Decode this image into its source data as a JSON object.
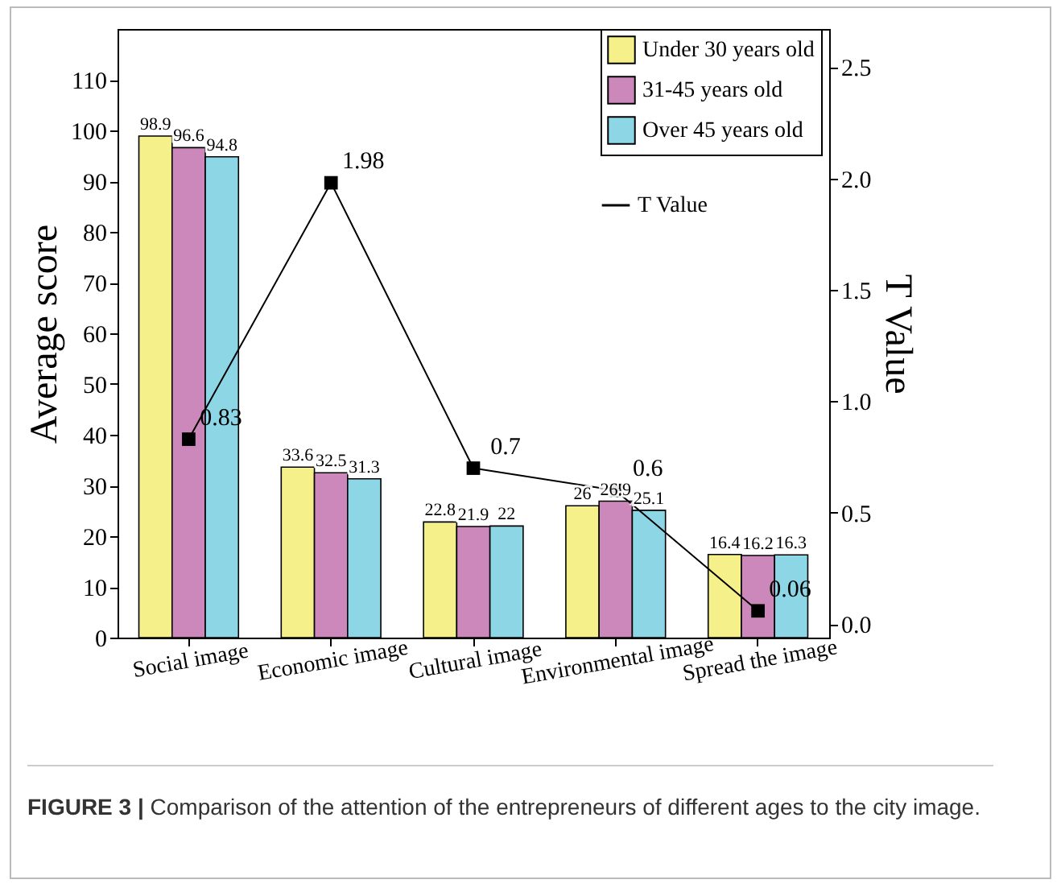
{
  "chart_data": {
    "type": "bar",
    "ylabel": "Average score",
    "y2label": "T Value",
    "categories": [
      "Social image",
      "Economic image",
      "Cultural image",
      "Environmental image",
      "Spread the image"
    ],
    "series": [
      {
        "name": "Under 30 years old",
        "color": "#f5f08a",
        "values": [
          98.9,
          33.6,
          22.8,
          26,
          16.4
        ]
      },
      {
        "name": "31-45 years old",
        "color": "#cc88bb",
        "values": [
          96.6,
          32.5,
          21.9,
          26.9,
          16.2
        ]
      },
      {
        "name": "Over 45 years old",
        "color": "#8dd6e6",
        "values": [
          94.8,
          31.3,
          22,
          25.1,
          16.3
        ]
      },
      {
        "name": "T Value",
        "type": "line",
        "axis": "y2",
        "color": "#000000",
        "marker": "square",
        "values": [
          0.83,
          1.98,
          0.7,
          0.6,
          0.06
        ]
      }
    ],
    "ylim": [
      0,
      120
    ],
    "yticks": [
      0,
      10,
      20,
      30,
      40,
      50,
      60,
      70,
      80,
      90,
      100,
      110
    ],
    "y2lim": [
      -0.06,
      2.67
    ],
    "y2ticks": [
      {
        "value": 0,
        "label": "0.0"
      },
      0.5,
      {
        "value": 1,
        "label": "1.0"
      },
      1.5,
      {
        "value": 2,
        "label": "2.0"
      },
      2.5
    ],
    "data_labels": true,
    "legend": "top right",
    "grid": false,
    "annotations": [
      "FIGURE 3 | Comparison of the attention of the entrepreneurs of different ages to the city image."
    ]
  }
}
